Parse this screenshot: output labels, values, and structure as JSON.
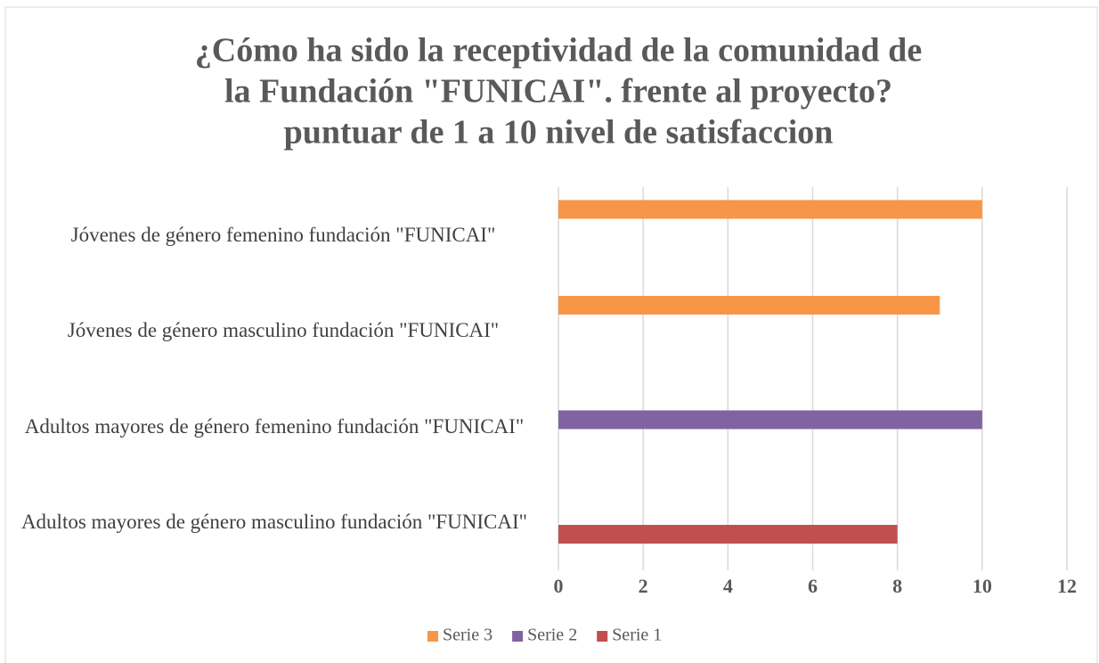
{
  "chart_data": {
    "type": "bar",
    "orientation": "horizontal",
    "title": [
      "¿Cómo ha sido la receptividad de la comunidad de",
      "la Fundación \"FUNICAI\".  frente al proyecto?",
      "puntuar de 1 a 10 nivel de satisfaccion"
    ],
    "categories": [
      "Adultos mayores de género masculino fundación \"FUNICAI\"",
      "Adultos mayores de género femenino fundación \"FUNICAI\"",
      "Jóvenes de género masculino fundación \"FUNICAI\"",
      "Jóvenes de género femenino fundación \"FUNICAI\""
    ],
    "series": [
      {
        "name": "Serie 1",
        "color": "#c0504d",
        "values": [
          8,
          null,
          null,
          null
        ]
      },
      {
        "name": "Serie 2",
        "color": "#8064a2",
        "values": [
          null,
          10,
          null,
          null
        ]
      },
      {
        "name": "Serie 3",
        "color": "#f79646",
        "values": [
          null,
          null,
          9,
          10
        ]
      }
    ],
    "xlim": [
      0,
      12
    ],
    "xticks": [
      0,
      2,
      4,
      6,
      8,
      10,
      12
    ],
    "grid": true,
    "legend": "bottom"
  }
}
